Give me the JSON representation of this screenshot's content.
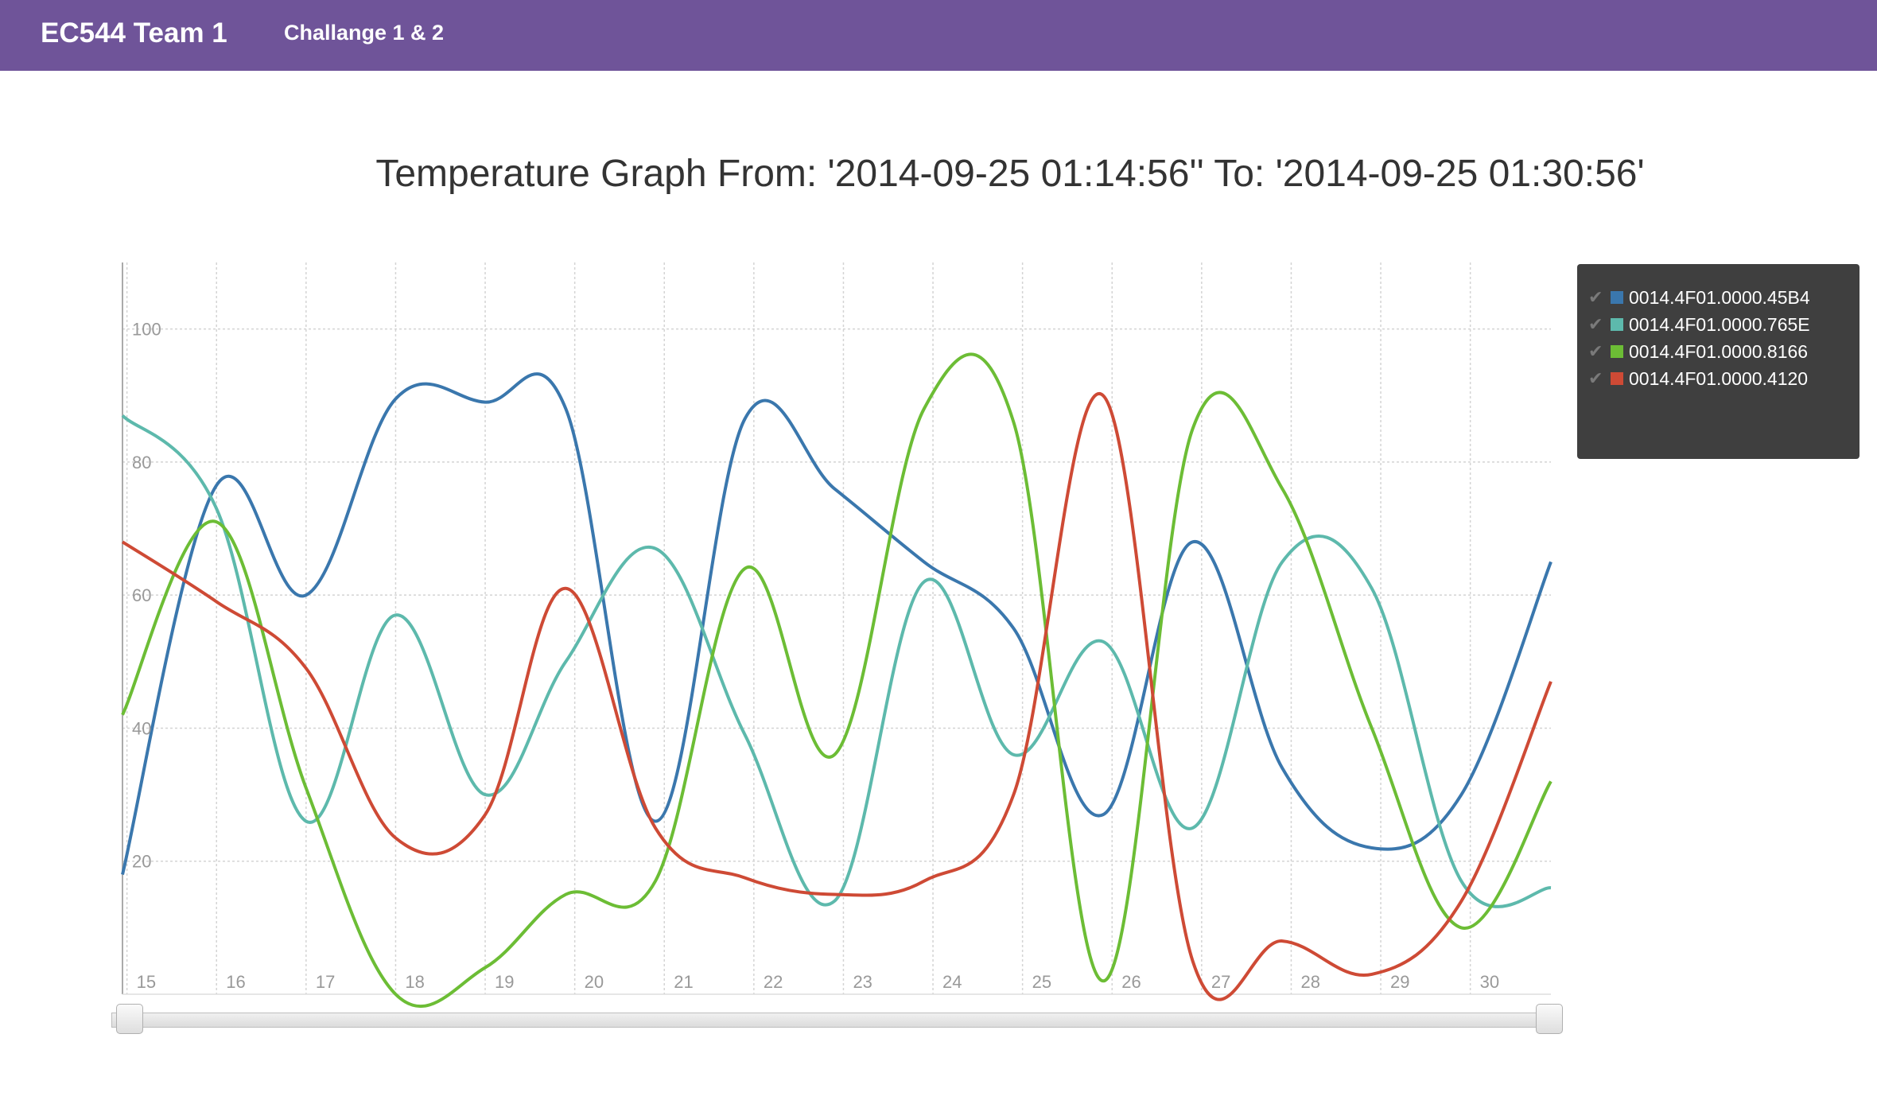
{
  "navbar": {
    "brand": "EC544 Team 1",
    "link": "Challange 1 & 2",
    "color": "#6f5499"
  },
  "title": "Temperature Graph From: '2014-09-25 01:14:56'' To: '2014-09-25 01:30:56'",
  "legend": {
    "check_icon": "checkmark-icon",
    "items": [
      {
        "label": "0014.4F01.0000.45B4",
        "color": "#3a77ad"
      },
      {
        "label": "0014.4F01.0000.765E",
        "color": "#5db9ac"
      },
      {
        "label": "0014.4F01.0000.8166",
        "color": "#6cbd35"
      },
      {
        "label": "0014.4F01.0000.4120",
        "color": "#ce4a35"
      }
    ]
  },
  "slider": {
    "range_start": 15,
    "range_end": 30.9
  },
  "chart_data": {
    "type": "line",
    "ylim": [
      0,
      110
    ],
    "xlim": [
      14.95,
      30.9
    ],
    "x_ticks": [
      15,
      16,
      17,
      18,
      19,
      20,
      21,
      22,
      23,
      24,
      25,
      26,
      27,
      28,
      29,
      30
    ],
    "y_ticks": [
      20,
      40,
      60,
      80,
      100
    ],
    "grid": true,
    "legend_position": "right",
    "series": [
      {
        "name": "0014.4F01.0000.45B4",
        "color": "#3a77ad",
        "x": [
          14.95,
          16,
          17,
          18,
          19,
          19.9,
          20.9,
          21.9,
          22.9,
          23.9,
          24.9,
          25.9,
          26.9,
          27.9,
          28.9,
          29.9,
          30.9
        ],
        "y": [
          18,
          76.5,
          60,
          89.5,
          89,
          88,
          26,
          86.5,
          76,
          65,
          55,
          27,
          68,
          34,
          22,
          30,
          65
        ]
      },
      {
        "name": "0014.4F01.0000.765E",
        "color": "#5db9ac",
        "x": [
          14.95,
          16,
          17,
          18,
          19,
          19.9,
          20.9,
          21.9,
          22.9,
          23.9,
          24.9,
          25.9,
          26.9,
          27.9,
          28.9,
          29.9,
          30.9
        ],
        "y": [
          87,
          73,
          26,
          57,
          30,
          50,
          67,
          39,
          14,
          62,
          36,
          53,
          25,
          65,
          61,
          17,
          16
        ]
      },
      {
        "name": "0014.4F01.0000.8166",
        "color": "#6cbd35",
        "x": [
          14.95,
          16,
          17,
          18,
          19,
          19.9,
          20.9,
          21.9,
          22.9,
          23.9,
          24.9,
          25.9,
          26.9,
          27.9,
          28.9,
          29.9,
          30.9
        ],
        "y": [
          42,
          71,
          31,
          0,
          4,
          15,
          17,
          64,
          36,
          88,
          86,
          2,
          85,
          76,
          40,
          10,
          32
        ]
      },
      {
        "name": "0014.4F01.0000.4120",
        "color": "#ce4a35",
        "x": [
          14.95,
          16,
          17,
          18,
          19,
          19.9,
          20.9,
          21.9,
          22.9,
          23.9,
          24.9,
          25.9,
          26.9,
          27.9,
          28.9,
          29.9,
          30.9
        ],
        "y": [
          68,
          59,
          49,
          23.5,
          27,
          61,
          25,
          17.5,
          15,
          17,
          30,
          90,
          5,
          8,
          3,
          14,
          47
        ]
      }
    ]
  }
}
